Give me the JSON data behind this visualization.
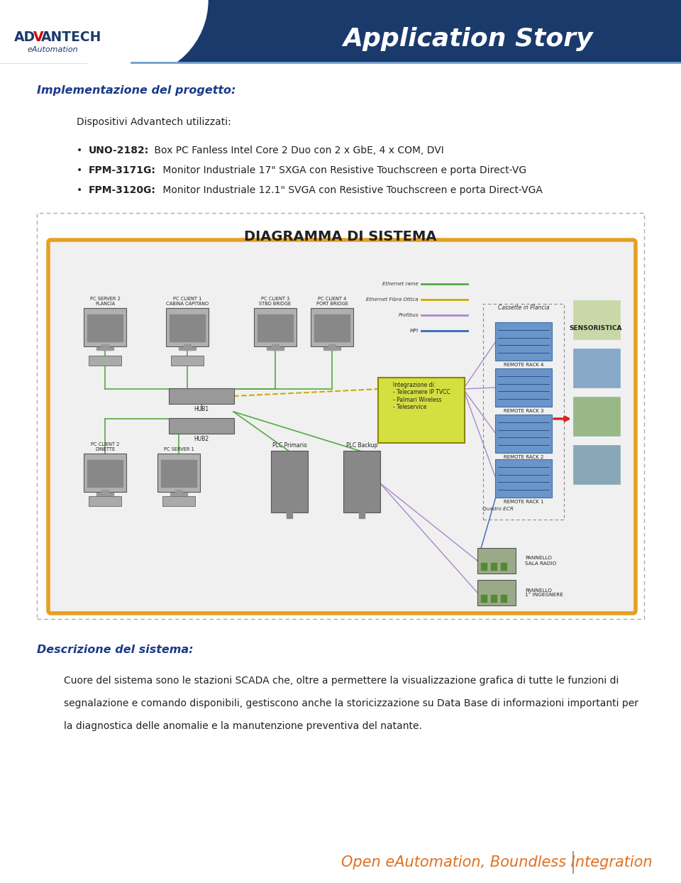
{
  "bg_color": "#ffffff",
  "header_bg": "#1a3a6b",
  "header_text": "Application Story",
  "header_text_color": "#ffffff",
  "section_title": "Implementazione del progetto:",
  "section_title_color": "#1a3a8a",
  "subtitle": "Dispositivi Advantech utilizzati:",
  "bullets": [
    {
      "bold": "UNO-2182:",
      "normal": " Box PC Fanless Intel Core 2 Duo con 2 x GbE, 4 x COM, DVI"
    },
    {
      "bold": "FPM-3171G:",
      "normal": " Monitor Industriale 17\" SXGA con Resistive Touchscreen e porta Direct-VG"
    },
    {
      "bold": "FPM-3120G:",
      "normal": " Monitor Industriale 12.1\" SVGA con Resistive Touchscreen e porta Direct-VGA"
    }
  ],
  "diagram_title": "DIAGRAMMA DI SISTEMA",
  "diagram_outer_border": "#aaaaaa",
  "diagram_inner_border": "#e8a020",
  "diagram_inner_bg": "#f0f0f0",
  "desc_title": "Descrizione del sistema:",
  "desc_title_color": "#1a3a8a",
  "desc_lines": [
    "Cuore del sistema sono le stazioni SCADA che, oltre a permettere la visualizzazione grafica di tutte le funzioni di",
    "segnalazione e comando disponibili, gestiscono anche la storicizzazione su Data Base di informazioni importanti per",
    "la diagnostica delle anomalie e la manutenzione preventiva del natante."
  ],
  "footer_text": "Open eAutomation, Boundless Integration",
  "footer_color": "#e07020",
  "green": "#55aa44",
  "yellow": "#ccaa00",
  "purple": "#aa88cc",
  "blue_dark": "#3366bb"
}
